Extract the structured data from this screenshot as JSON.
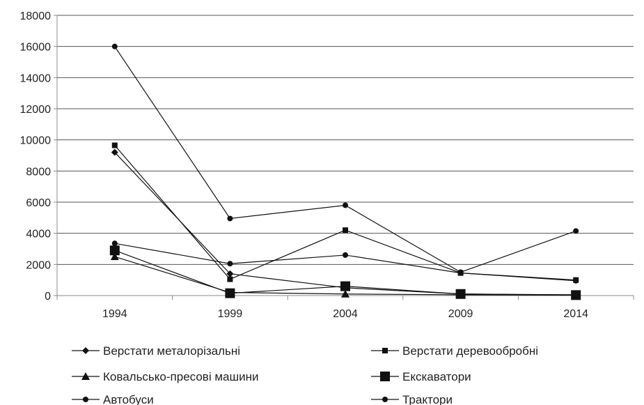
{
  "chart_data": {
    "type": "line",
    "title": "",
    "xlabel": "",
    "ylabel": "",
    "categories": [
      "1994",
      "1999",
      "2004",
      "2009",
      "2014"
    ],
    "ylim": [
      0,
      18000
    ],
    "y_ticks": [
      "0",
      "2000",
      "4000",
      "6000",
      "8000",
      "10000",
      "12000",
      "14000",
      "16000",
      "18000"
    ],
    "grid": "horizontal",
    "legend_position": "bottom",
    "series": [
      {
        "name": "Верстати металорізальні",
        "marker": "diamond",
        "values": [
          9200,
          1400,
          500,
          100,
          50
        ]
      },
      {
        "name": "Верстати деревообробні",
        "marker": "square-small",
        "values": [
          9650,
          1050,
          4200,
          1450,
          1000
        ]
      },
      {
        "name": "Ковальсько-пресові машини",
        "marker": "triangle",
        "values": [
          2500,
          200,
          100,
          50,
          20
        ]
      },
      {
        "name": "Екскаватори",
        "marker": "square-large",
        "values": [
          2900,
          150,
          600,
          100,
          30
        ]
      },
      {
        "name": "Автобуси",
        "marker": "circle",
        "values": [
          3350,
          2050,
          2600,
          1450,
          950
        ]
      },
      {
        "name": "Трактори",
        "marker": "circle",
        "values": [
          16000,
          4950,
          5800,
          1500,
          4150
        ]
      }
    ]
  }
}
